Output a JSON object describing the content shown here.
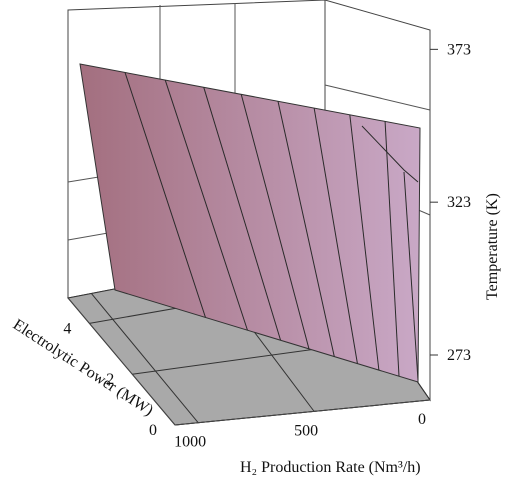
{
  "chart_data": {
    "type": "surface3d",
    "title": "",
    "x_axis": {
      "label": "H₂ Production Rate (Nm³/h)",
      "unit_note": "",
      "ticks": [
        "0",
        "500",
        "1000"
      ],
      "range": [
        0,
        1100
      ]
    },
    "y_axis": {
      "label": "Electrolytic Power (MW)",
      "ticks": [
        "0",
        "2",
        "4"
      ],
      "range": [
        0,
        5
      ]
    },
    "z_axis": {
      "label": "Temperature (K)",
      "ticks": [
        "273",
        "323",
        "373"
      ],
      "range": [
        273,
        388
      ]
    },
    "surface": {
      "x": [
        0,
        1100
      ],
      "y": [
        0,
        5
      ],
      "z_grid": [
        [
          375,
          388
        ],
        [
          273,
          273
        ]
      ],
      "contour_count": 8,
      "color_low": "#a8727e",
      "color_high": "#c6a6c4"
    },
    "floor_color": "#a9a9a9",
    "grid": true,
    "box": true
  }
}
